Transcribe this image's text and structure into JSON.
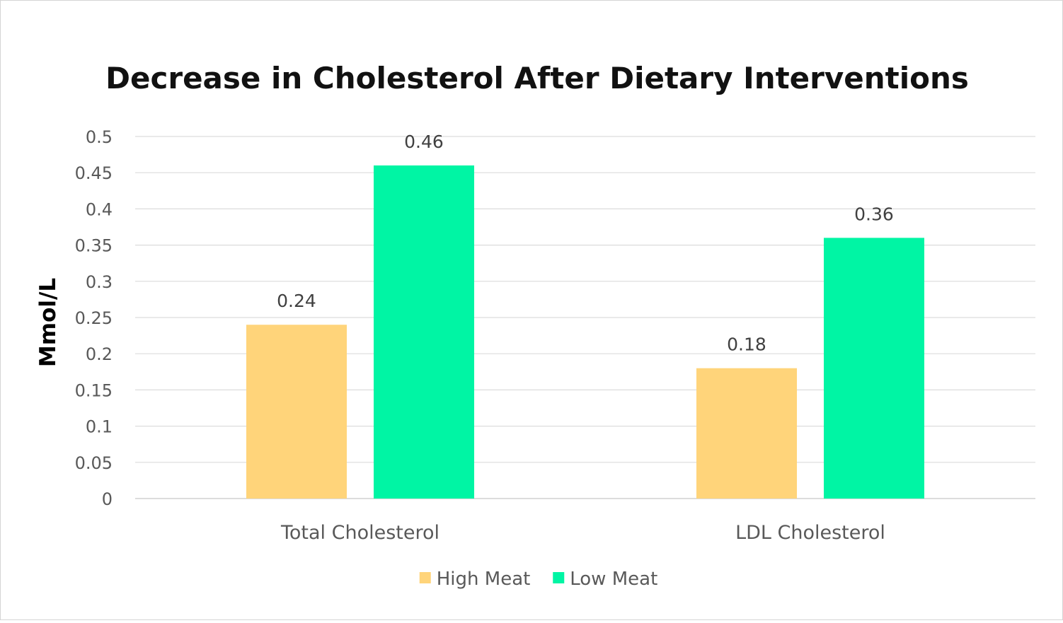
{
  "chart_data": {
    "type": "bar",
    "title": "Decrease in Cholesterol After Dietary Interventions",
    "ylabel": "Mmol/L",
    "xlabel": "",
    "categories": [
      "Total Cholesterol",
      "LDL Cholesterol"
    ],
    "series": [
      {
        "name": "High Meat",
        "color": "#FFD47A",
        "values": [
          0.24,
          0.18
        ]
      },
      {
        "name": "Low Meat",
        "color": "#00F5A4",
        "values": [
          0.46,
          0.36
        ]
      }
    ],
    "ylim": [
      0,
      0.5
    ],
    "yticks": [
      "0",
      "0.05",
      "0.1",
      "0.15",
      "0.2",
      "0.25",
      "0.3",
      "0.35",
      "0.4",
      "0.45",
      "0.5"
    ],
    "ytick_values": [
      0,
      0.05,
      0.1,
      0.15,
      0.2,
      0.25,
      0.3,
      0.35,
      0.4,
      0.45,
      0.5
    ],
    "data_labels": [
      [
        "0.24",
        "0.18"
      ],
      [
        "0.46",
        "0.36"
      ]
    ],
    "grid": true,
    "legend_position": "bottom"
  }
}
